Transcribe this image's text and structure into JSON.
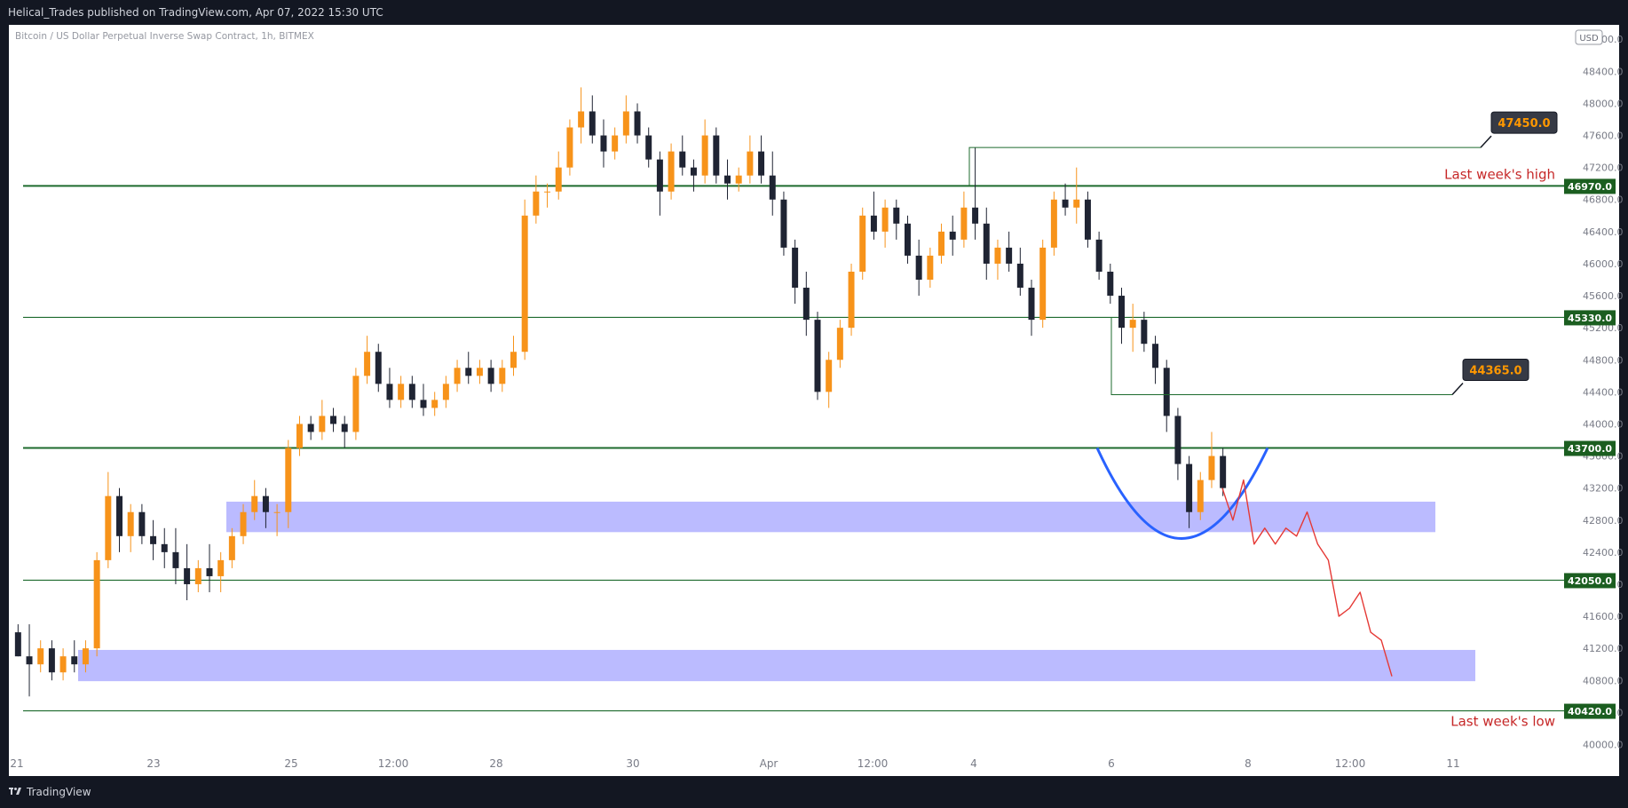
{
  "header": {
    "publish_text": "Helical_Trades published on TradingView.com, Apr 07, 2022 15:30 UTC"
  },
  "footer": {
    "brand": "TradingView"
  },
  "colors": {
    "background": "#131722",
    "chart_bg": "#ffffff",
    "candle_up": "#f7931a",
    "candle_down": "#1f2433",
    "level_line": "#1e6b2e",
    "zone": "#aaaaff",
    "curve": "#2962ff",
    "projection": "#e53935",
    "annotation_text": "#c62828",
    "callout_bg": "#363a45",
    "callout_text": "#ff9800"
  },
  "chart_data": {
    "type": "candlestick",
    "title": "Bitcoin / US Dollar Perpetual Inverse Swap Contract, 1h, BITMEX",
    "currency_label": "USD",
    "x_axis_ticks": [
      "21",
      "23",
      "25",
      "12:00",
      "28",
      "30",
      "Apr",
      "12:00",
      "4",
      "6",
      "8",
      "12:00",
      "11"
    ],
    "y_axis_ticks": [
      48800.0,
      48400.0,
      48000.0,
      47600.0,
      47200.0,
      46800.0,
      46400.0,
      46000.0,
      45600.0,
      45200.0,
      44800.0,
      44400.0,
      44000.0,
      43600.0,
      43200.0,
      42800.0,
      42400.0,
      42000.0,
      41600.0,
      41200.0,
      40800.0,
      40400.0,
      40000.0
    ],
    "y_range": [
      39850,
      48980
    ],
    "horizontal_levels": [
      {
        "price": 46970.0,
        "label": "46970.0",
        "note": "Last week's high"
      },
      {
        "price": 45330.0,
        "label": "45330.0",
        "note": ""
      },
      {
        "price": 43700.0,
        "label": "43700.0",
        "note": ""
      },
      {
        "price": 42050.0,
        "label": "42050.0",
        "note": ""
      },
      {
        "price": 40420.0,
        "label": "40420.0",
        "note": "Last week's low"
      }
    ],
    "callouts": [
      {
        "price": 47450.0,
        "label": "47450.0"
      },
      {
        "price": 44365.0,
        "label": "44365.0"
      }
    ],
    "demand_zones": [
      {
        "top": 43030,
        "bottom": 42650
      },
      {
        "top": 41180,
        "bottom": 40790
      }
    ],
    "price_path": [
      [
        41400,
        41500,
        41100,
        41100
      ],
      [
        41100,
        41500,
        40600,
        41000
      ],
      [
        41000,
        41300,
        40900,
        41200
      ],
      [
        41200,
        41300,
        40800,
        40900
      ],
      [
        40900,
        41200,
        40800,
        41100
      ],
      [
        41100,
        41300,
        40900,
        41000
      ],
      [
        41000,
        41300,
        40900,
        41200
      ],
      [
        41200,
        42400,
        41100,
        42300
      ],
      [
        42300,
        43400,
        42200,
        43100
      ],
      [
        43100,
        43200,
        42400,
        42600
      ],
      [
        42600,
        43000,
        42400,
        42900
      ],
      [
        42900,
        43000,
        42500,
        42600
      ],
      [
        42600,
        42800,
        42300,
        42500
      ],
      [
        42500,
        42700,
        42200,
        42400
      ],
      [
        42400,
        42700,
        42000,
        42200
      ],
      [
        42200,
        42500,
        41800,
        42000
      ],
      [
        42000,
        42300,
        41900,
        42200
      ],
      [
        42200,
        42500,
        41900,
        42100
      ],
      [
        42100,
        42400,
        41900,
        42300
      ],
      [
        42300,
        42700,
        42200,
        42600
      ],
      [
        42600,
        43000,
        42500,
        42900
      ],
      [
        42900,
        43300,
        42800,
        43100
      ],
      [
        43100,
        43200,
        42700,
        42900
      ],
      [
        42900,
        43000,
        42600,
        42900
      ],
      [
        42900,
        43800,
        42700,
        43700
      ],
      [
        43700,
        44100,
        43600,
        44000
      ],
      [
        44000,
        44100,
        43800,
        43900
      ],
      [
        43900,
        44300,
        43800,
        44100
      ],
      [
        44100,
        44200,
        43900,
        44000
      ],
      [
        44000,
        44100,
        43700,
        43900
      ],
      [
        43900,
        44700,
        43800,
        44600
      ],
      [
        44600,
        45100,
        44500,
        44900
      ],
      [
        44900,
        45000,
        44400,
        44500
      ],
      [
        44500,
        44700,
        44200,
        44300
      ],
      [
        44300,
        44600,
        44200,
        44500
      ],
      [
        44500,
        44600,
        44200,
        44300
      ],
      [
        44300,
        44500,
        44100,
        44200
      ],
      [
        44200,
        44400,
        44100,
        44300
      ],
      [
        44300,
        44600,
        44200,
        44500
      ],
      [
        44500,
        44800,
        44400,
        44700
      ],
      [
        44700,
        44900,
        44500,
        44600
      ],
      [
        44600,
        44800,
        44500,
        44700
      ],
      [
        44700,
        44800,
        44400,
        44500
      ],
      [
        44500,
        44800,
        44400,
        44700
      ],
      [
        44700,
        45100,
        44600,
        44900
      ],
      [
        44900,
        46800,
        44800,
        46600
      ],
      [
        46600,
        47100,
        46500,
        46900
      ],
      [
        46900,
        47000,
        46700,
        46900
      ],
      [
        46900,
        47400,
        46800,
        47200
      ],
      [
        47200,
        47800,
        47100,
        47700
      ],
      [
        47700,
        48200,
        47500,
        47900
      ],
      [
        47900,
        48100,
        47500,
        47600
      ],
      [
        47600,
        47800,
        47200,
        47400
      ],
      [
        47400,
        47700,
        47300,
        47600
      ],
      [
        47600,
        48100,
        47500,
        47900
      ],
      [
        47900,
        48000,
        47500,
        47600
      ],
      [
        47600,
        47700,
        47200,
        47300
      ],
      [
        47300,
        47400,
        46600,
        46900
      ],
      [
        46900,
        47500,
        46800,
        47400
      ],
      [
        47400,
        47600,
        47100,
        47200
      ],
      [
        47200,
        47300,
        46900,
        47100
      ],
      [
        47100,
        47800,
        47000,
        47600
      ],
      [
        47600,
        47700,
        47000,
        47100
      ],
      [
        47100,
        47300,
        46800,
        47000
      ],
      [
        47000,
        47200,
        46900,
        47100
      ],
      [
        47100,
        47600,
        47000,
        47400
      ],
      [
        47400,
        47600,
        47000,
        47100
      ],
      [
        47100,
        47400,
        46600,
        46800
      ],
      [
        46800,
        46900,
        46100,
        46200
      ],
      [
        46200,
        46300,
        45500,
        45700
      ],
      [
        45700,
        45900,
        45100,
        45300
      ],
      [
        45300,
        45400,
        44300,
        44400
      ],
      [
        44400,
        44900,
        44200,
        44800
      ],
      [
        44800,
        45300,
        44700,
        45200
      ],
      [
        45200,
        46000,
        45100,
        45900
      ],
      [
        45900,
        46700,
        45800,
        46600
      ],
      [
        46600,
        46900,
        46300,
        46400
      ],
      [
        46400,
        46800,
        46200,
        46700
      ],
      [
        46700,
        46800,
        46300,
        46500
      ],
      [
        46500,
        46600,
        46000,
        46100
      ],
      [
        46100,
        46300,
        45600,
        45800
      ],
      [
        45800,
        46200,
        45700,
        46100
      ],
      [
        46100,
        46500,
        46000,
        46400
      ],
      [
        46400,
        46600,
        46100,
        46300
      ],
      [
        46300,
        46900,
        46200,
        46700
      ],
      [
        46700,
        47450,
        46300,
        46500
      ],
      [
        46500,
        46700,
        45800,
        46000
      ],
      [
        46000,
        46300,
        45800,
        46200
      ],
      [
        46200,
        46400,
        45900,
        46000
      ],
      [
        46000,
        46200,
        45600,
        45700
      ],
      [
        45700,
        45800,
        45100,
        45300
      ],
      [
        45300,
        46300,
        45200,
        46200
      ],
      [
        46200,
        46900,
        46100,
        46800
      ],
      [
        46800,
        47000,
        46600,
        46700
      ],
      [
        46700,
        47200,
        46500,
        46800
      ],
      [
        46800,
        46900,
        46200,
        46300
      ],
      [
        46300,
        46400,
        45800,
        45900
      ],
      [
        45900,
        46000,
        45500,
        45600
      ],
      [
        45600,
        45700,
        45000,
        45200
      ],
      [
        45200,
        45500,
        44900,
        45300
      ],
      [
        45300,
        45400,
        44900,
        45000
      ],
      [
        45000,
        45100,
        44500,
        44700
      ],
      [
        44700,
        44800,
        43900,
        44100
      ],
      [
        44100,
        44200,
        43300,
        43500
      ],
      [
        43500,
        43600,
        42700,
        42900
      ],
      [
        42900,
        43400,
        42800,
        43300
      ],
      [
        43300,
        43900,
        43200,
        43600
      ],
      [
        43600,
        43700,
        43100,
        43200
      ]
    ],
    "projection_path": [
      43200,
      42800,
      43300,
      42500,
      42700,
      42500,
      42700,
      42600,
      42900,
      42500,
      42300,
      41600,
      41700,
      41900,
      41400,
      41300,
      40850
    ],
    "annotations": [
      "Last week's high",
      "Last week's low"
    ]
  }
}
